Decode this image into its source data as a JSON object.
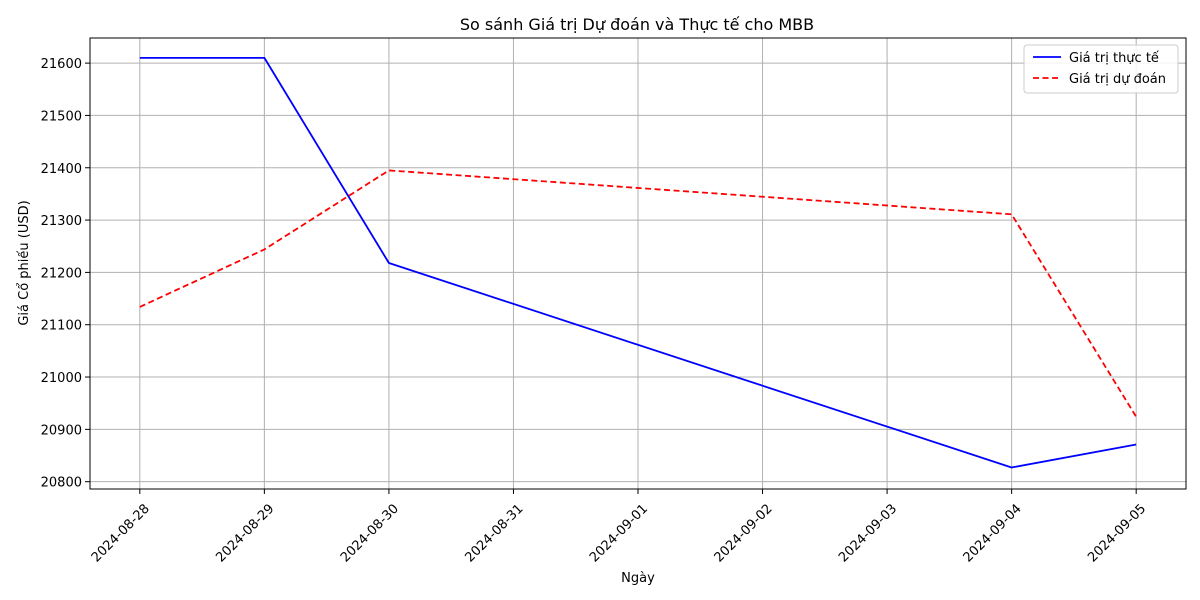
{
  "chart_data": {
    "type": "line",
    "title": "So sánh Giá trị Dự đoán và Thực tế cho MBB",
    "xlabel": "Ngày",
    "ylabel": "Giá Cổ phiếu (USD)",
    "x_ticks": [
      "2024-08-28",
      "2024-08-29",
      "2024-08-30",
      "2024-08-31",
      "2024-09-01",
      "2024-09-02",
      "2024-09-03",
      "2024-09-04",
      "2024-09-05"
    ],
    "y_ticks": [
      20800,
      20900,
      21000,
      21100,
      21200,
      21300,
      21400,
      21500,
      21600
    ],
    "ylim": [
      20786,
      21648
    ],
    "xlim": [
      "2024-08-27T14:24",
      "2024-09-05T09:36"
    ],
    "grid": true,
    "legend_position": "top-right",
    "series": [
      {
        "name": "Giá trị thực tế",
        "color": "#0000ff",
        "style": "solid",
        "x": [
          "2024-08-28",
          "2024-08-29",
          "2024-08-30",
          "2024-09-04",
          "2024-09-05"
        ],
        "values": [
          21610,
          21610,
          21218,
          20827,
          20871
        ]
      },
      {
        "name": "Giá trị dự đoán",
        "color": "#ff0000",
        "style": "dashed",
        "x": [
          "2024-08-28",
          "2024-08-29",
          "2024-08-30",
          "2024-09-04",
          "2024-09-05"
        ],
        "values": [
          21134,
          21244,
          21395,
          21311,
          20924
        ]
      }
    ]
  }
}
